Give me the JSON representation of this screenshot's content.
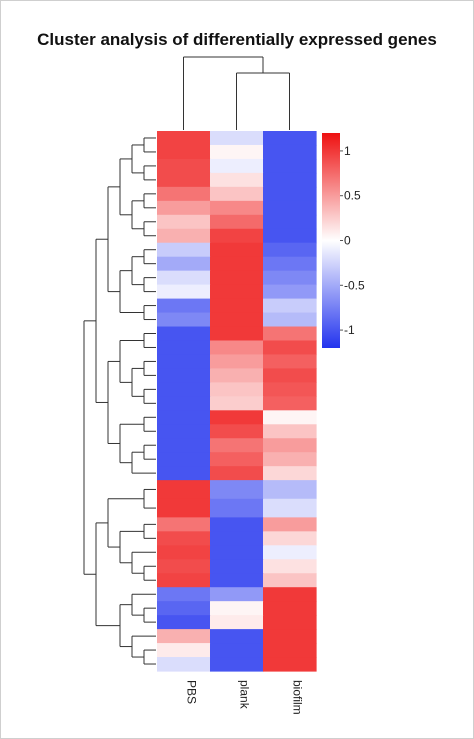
{
  "chart_data": {
    "type": "heatmap",
    "title": "Cluster analysis of differentially expressed genes",
    "columns": [
      "PBS",
      "plank",
      "biofilm"
    ],
    "legend": {
      "ticks": [
        1,
        0.5,
        0,
        -0.5,
        -1
      ],
      "range": [
        -1.2,
        1.2
      ],
      "colors": {
        "low": "#2233ee",
        "mid": "#ffffff",
        "high": "#ee1111"
      },
      "placement": "right"
    },
    "values": [
      [
        0.95,
        -0.2,
        -1.0
      ],
      [
        0.95,
        0.05,
        -1.0
      ],
      [
        0.9,
        -0.1,
        -1.0
      ],
      [
        0.9,
        0.15,
        -1.0
      ],
      [
        0.7,
        0.3,
        -1.0
      ],
      [
        0.5,
        0.6,
        -1.0
      ],
      [
        0.3,
        0.75,
        -1.0
      ],
      [
        0.4,
        0.95,
        -1.0
      ],
      [
        -0.3,
        1.0,
        -0.9
      ],
      [
        -0.5,
        1.0,
        -0.8
      ],
      [
        -0.2,
        1.0,
        -0.7
      ],
      [
        -0.1,
        1.0,
        -0.6
      ],
      [
        -0.8,
        1.0,
        -0.3
      ],
      [
        -0.7,
        1.0,
        -0.4
      ],
      [
        -1.0,
        1.0,
        0.7
      ],
      [
        -1.0,
        0.6,
        0.9
      ],
      [
        -1.0,
        0.5,
        0.8
      ],
      [
        -1.0,
        0.4,
        0.9
      ],
      [
        -1.0,
        0.3,
        0.85
      ],
      [
        -1.0,
        0.25,
        0.8
      ],
      [
        -1.0,
        1.0,
        0.05
      ],
      [
        -1.0,
        0.9,
        0.3
      ],
      [
        -1.0,
        0.7,
        0.5
      ],
      [
        -1.0,
        0.8,
        0.4
      ],
      [
        -1.0,
        0.9,
        0.2
      ],
      [
        1.0,
        -0.7,
        -0.4
      ],
      [
        1.0,
        -0.8,
        -0.2
      ],
      [
        0.7,
        -1.0,
        0.5
      ],
      [
        0.9,
        -1.0,
        0.2
      ],
      [
        0.95,
        -1.0,
        -0.1
      ],
      [
        0.9,
        -1.0,
        0.15
      ],
      [
        0.95,
        -1.0,
        0.3
      ],
      [
        -0.8,
        -0.6,
        1.0
      ],
      [
        -0.9,
        0.05,
        1.0
      ],
      [
        -1.0,
        0.1,
        1.0
      ],
      [
        0.4,
        -1.0,
        1.0
      ],
      [
        0.1,
        -1.0,
        1.0
      ],
      [
        -0.2,
        -1.0,
        1.0
      ]
    ],
    "row_weights": [
      3,
      3,
      3,
      3,
      3,
      3,
      3,
      3,
      3,
      3,
      3,
      3,
      3,
      3,
      3,
      3,
      3,
      3,
      3,
      3,
      3,
      3,
      3,
      3,
      3,
      4,
      4,
      3,
      3,
      3,
      3,
      3,
      3,
      3,
      3,
      3,
      3,
      3
    ],
    "dendrogram_rows_left": "hierarchical clustering of genes",
    "dendrogram_columns_top": "plank and biofilm cluster together, then PBS"
  }
}
